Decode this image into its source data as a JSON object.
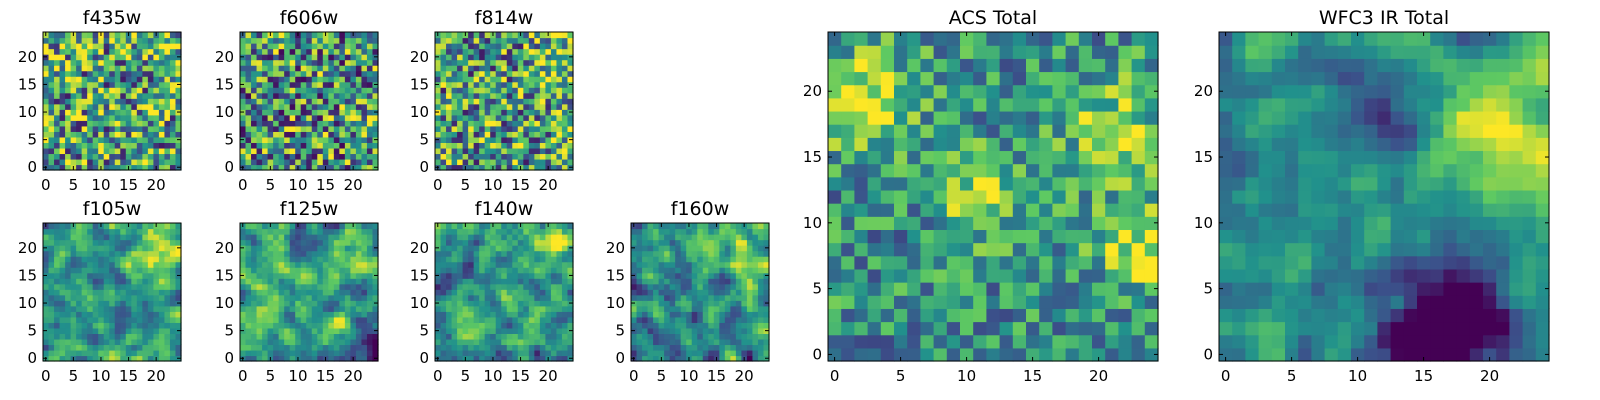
{
  "figure": {
    "background": "#ffffff",
    "colormap": "viridis",
    "colormap_stops": [
      "#440154",
      "#3b528b",
      "#21918c",
      "#5ec962",
      "#fde725"
    ],
    "grid": false,
    "note": "image cells are noisy pixel maps; values procedurally generated to mimic the visible texture"
  },
  "chart_data": [
    {
      "id": "f435w",
      "type": "heatmap",
      "title": "f435w",
      "xlim": [
        0,
        25
      ],
      "ylim": [
        0,
        25
      ],
      "xticks": [
        0,
        5,
        10,
        15,
        20
      ],
      "yticks": [
        0,
        5,
        10,
        15,
        20
      ],
      "xtick_labels": [
        "0",
        "5",
        "10",
        "15",
        "20"
      ],
      "ytick_labels": [
        "0",
        "5",
        "10",
        "15",
        "20"
      ],
      "grid_size": 25,
      "seed": 11,
      "noise": 0.95,
      "smooth": 0,
      "bias": 0.58,
      "contrast": 1.05,
      "hotspots": [
        {
          "x": 22,
          "y": 22,
          "r": 3,
          "a": 0.15
        }
      ]
    },
    {
      "id": "f606w",
      "type": "heatmap",
      "title": "f606w",
      "xlim": [
        0,
        25
      ],
      "ylim": [
        0,
        25
      ],
      "xticks": [
        0,
        5,
        10,
        15,
        20
      ],
      "yticks": [
        0,
        5,
        10,
        15,
        20
      ],
      "xtick_labels": [
        "0",
        "5",
        "10",
        "15",
        "20"
      ],
      "ytick_labels": [
        "0",
        "5",
        "10",
        "15",
        "20"
      ],
      "grid_size": 25,
      "seed": 23,
      "noise": 0.95,
      "smooth": 0,
      "bias": 0.52,
      "contrast": 1.05,
      "hotspots": [
        {
          "x": 24,
          "y": 8,
          "r": 2,
          "a": 0.3
        }
      ]
    },
    {
      "id": "f814w",
      "type": "heatmap",
      "title": "f814w",
      "xlim": [
        0,
        25
      ],
      "ylim": [
        0,
        25
      ],
      "xticks": [
        0,
        5,
        10,
        15,
        20
      ],
      "yticks": [
        0,
        5,
        10,
        15,
        20
      ],
      "xtick_labels": [
        "0",
        "5",
        "10",
        "15",
        "20"
      ],
      "ytick_labels": [
        "0",
        "5",
        "10",
        "15",
        "20"
      ],
      "grid_size": 25,
      "seed": 37,
      "noise": 0.9,
      "smooth": 0,
      "bias": 0.55,
      "contrast": 1.05,
      "hotspots": [
        {
          "x": 22,
          "y": 19,
          "r": 3,
          "a": 0.3
        },
        {
          "x": 24,
          "y": 7,
          "r": 2,
          "a": 0.3
        }
      ]
    },
    {
      "id": "f105w",
      "type": "heatmap",
      "title": "f105w",
      "xlim": [
        0,
        25
      ],
      "ylim": [
        0,
        25
      ],
      "xticks": [
        0,
        5,
        10,
        15,
        20
      ],
      "yticks": [
        0,
        5,
        10,
        15,
        20
      ],
      "xtick_labels": [
        "0",
        "5",
        "10",
        "15",
        "20"
      ],
      "ytick_labels": [
        "0",
        "5",
        "10",
        "15",
        "20"
      ],
      "grid_size": 25,
      "seed": 41,
      "noise": 0.6,
      "smooth": 1,
      "bias": 0.52,
      "contrast": 1.3,
      "hotspots": [
        {
          "x": 20,
          "y": 19,
          "r": 3,
          "a": 0.35
        },
        {
          "x": 3,
          "y": 3,
          "r": 3,
          "a": 0.15
        }
      ]
    },
    {
      "id": "f125w",
      "type": "heatmap",
      "title": "f125w",
      "xlim": [
        0,
        25
      ],
      "ylim": [
        0,
        25
      ],
      "xticks": [
        0,
        5,
        10,
        15,
        20
      ],
      "yticks": [
        0,
        5,
        10,
        15,
        20
      ],
      "xtick_labels": [
        "0",
        "5",
        "10",
        "15",
        "20"
      ],
      "ytick_labels": [
        "0",
        "5",
        "10",
        "15",
        "20"
      ],
      "grid_size": 25,
      "seed": 53,
      "noise": 0.6,
      "smooth": 1,
      "bias": 0.56,
      "contrast": 1.3,
      "hotspots": [
        {
          "x": 22,
          "y": 19,
          "r": 3,
          "a": 0.3
        },
        {
          "x": 24,
          "y": 2,
          "r": 2,
          "a": -0.45
        }
      ]
    },
    {
      "id": "f140w",
      "type": "heatmap",
      "title": "f140w",
      "xlim": [
        0,
        25
      ],
      "ylim": [
        0,
        25
      ],
      "xticks": [
        0,
        5,
        10,
        15,
        20
      ],
      "yticks": [
        0,
        5,
        10,
        15,
        20
      ],
      "xtick_labels": [
        "0",
        "5",
        "10",
        "15",
        "20"
      ],
      "ytick_labels": [
        "0",
        "5",
        "10",
        "15",
        "20"
      ],
      "grid_size": 25,
      "seed": 67,
      "noise": 0.6,
      "smooth": 1,
      "bias": 0.54,
      "contrast": 1.3,
      "hotspots": [
        {
          "x": 22,
          "y": 20,
          "r": 3,
          "a": 0.3
        }
      ]
    },
    {
      "id": "f160w",
      "type": "heatmap",
      "title": "f160w",
      "xlim": [
        0,
        25
      ],
      "ylim": [
        0,
        25
      ],
      "xticks": [
        0,
        5,
        10,
        15,
        20
      ],
      "yticks": [
        0,
        5,
        10,
        15,
        20
      ],
      "xtick_labels": [
        "0",
        "5",
        "10",
        "15",
        "20"
      ],
      "ytick_labels": [
        "0",
        "5",
        "10",
        "15",
        "20"
      ],
      "grid_size": 25,
      "seed": 79,
      "noise": 0.6,
      "smooth": 1,
      "bias": 0.5,
      "contrast": 1.35,
      "hotspots": [
        {
          "x": 20,
          "y": 18,
          "r": 3,
          "a": 0.3
        },
        {
          "x": 12,
          "y": 20,
          "r": 2,
          "a": 0.2
        }
      ]
    },
    {
      "id": "acs-total",
      "type": "heatmap",
      "title": "ACS Total",
      "xlim": [
        0,
        25
      ],
      "ylim": [
        0,
        25
      ],
      "xticks": [
        0,
        5,
        10,
        15,
        20
      ],
      "yticks": [
        0,
        5,
        10,
        15,
        20
      ],
      "xtick_labels": [
        "0",
        "5",
        "10",
        "15",
        "20"
      ],
      "ytick_labels": [
        "0",
        "5",
        "10",
        "15",
        "20"
      ],
      "grid_size": 25,
      "seed": 97,
      "noise": 0.5,
      "smooth": 0,
      "bias": 0.5,
      "contrast": 1.15,
      "hotspots": [
        {
          "x": 1,
          "y": 19,
          "r": 2,
          "a": 0.4
        },
        {
          "x": 11,
          "y": 12,
          "r": 2,
          "a": 0.4
        },
        {
          "x": 23,
          "y": 8,
          "r": 2,
          "a": 0.45
        },
        {
          "x": 21,
          "y": 17,
          "r": 3,
          "a": 0.3
        },
        {
          "x": 4,
          "y": 20,
          "r": 3,
          "a": 0.2
        }
      ]
    },
    {
      "id": "wfc3-ir-total",
      "type": "heatmap",
      "title": "WFC3 IR Total",
      "xlim": [
        0,
        25
      ],
      "ylim": [
        0,
        25
      ],
      "xticks": [
        0,
        5,
        10,
        15,
        20
      ],
      "yticks": [
        0,
        5,
        10,
        15,
        20
      ],
      "xtick_labels": [
        "0",
        "5",
        "10",
        "15",
        "20"
      ],
      "ytick_labels": [
        "0",
        "5",
        "10",
        "15",
        "20"
      ],
      "grid_size": 25,
      "seed": 113,
      "noise": 0.4,
      "smooth": 1,
      "bias": 0.48,
      "contrast": 1.35,
      "hotspots": [
        {
          "x": 20,
          "y": 18,
          "r": 3,
          "a": 0.4
        },
        {
          "x": 24,
          "y": 16,
          "r": 3,
          "a": 0.3
        },
        {
          "x": 17,
          "y": 3,
          "r": 3,
          "a": -0.6
        },
        {
          "x": 15,
          "y": 0,
          "r": 2,
          "a": -0.5
        },
        {
          "x": 12,
          "y": 18,
          "r": 2,
          "a": -0.3
        }
      ]
    }
  ]
}
